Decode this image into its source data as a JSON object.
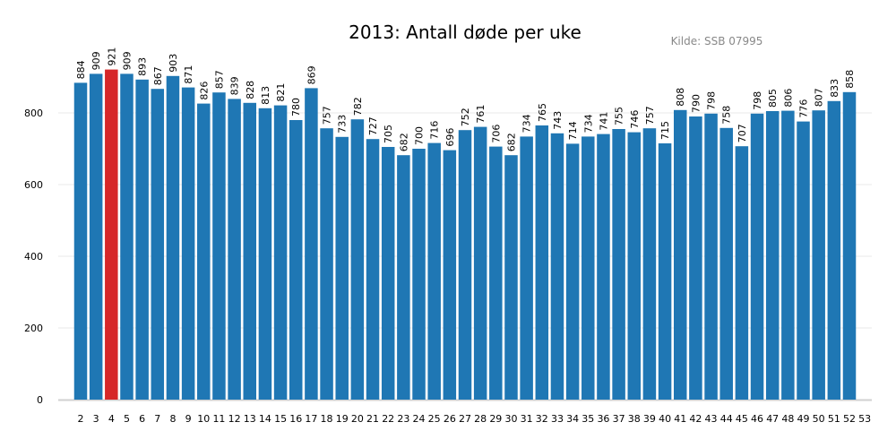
{
  "chart_data": {
    "type": "bar",
    "title": "2013: Antall døde per uke",
    "source": "Kilde: SSB 07995",
    "xlabel": "",
    "ylabel": "",
    "categories": [
      2,
      3,
      4,
      5,
      6,
      7,
      8,
      9,
      10,
      11,
      12,
      13,
      14,
      15,
      16,
      17,
      18,
      19,
      20,
      21,
      22,
      23,
      24,
      25,
      26,
      27,
      28,
      29,
      30,
      31,
      32,
      33,
      34,
      35,
      36,
      37,
      38,
      39,
      40,
      41,
      42,
      43,
      44,
      45,
      46,
      47,
      48,
      49,
      50,
      51,
      52
    ],
    "values": [
      884,
      909,
      921,
      909,
      893,
      867,
      903,
      871,
      826,
      857,
      839,
      828,
      813,
      821,
      780,
      869,
      757,
      733,
      782,
      727,
      705,
      682,
      700,
      716,
      696,
      752,
      761,
      706,
      682,
      734,
      765,
      743,
      714,
      734,
      741,
      755,
      746,
      757,
      715,
      808,
      790,
      798,
      758,
      707,
      798,
      805,
      806,
      776,
      807,
      833,
      858
    ],
    "x_ticks": [
      2,
      3,
      4,
      5,
      6,
      7,
      8,
      9,
      10,
      11,
      12,
      13,
      14,
      15,
      16,
      17,
      18,
      19,
      20,
      21,
      22,
      23,
      24,
      25,
      26,
      27,
      28,
      29,
      30,
      31,
      32,
      33,
      34,
      35,
      36,
      37,
      38,
      39,
      40,
      41,
      42,
      43,
      44,
      45,
      46,
      47,
      48,
      49,
      50,
      51,
      52,
      53
    ],
    "y_ticks": [
      0,
      200,
      400,
      600,
      800
    ],
    "ylim": [
      0,
      1000
    ],
    "grid": "horizontal",
    "highlight_category": 4,
    "colors": {
      "bar": "#1f77b4",
      "highlight": "#d62728",
      "grid": "#e8e8e8",
      "axis": "#d0d0d0"
    }
  }
}
